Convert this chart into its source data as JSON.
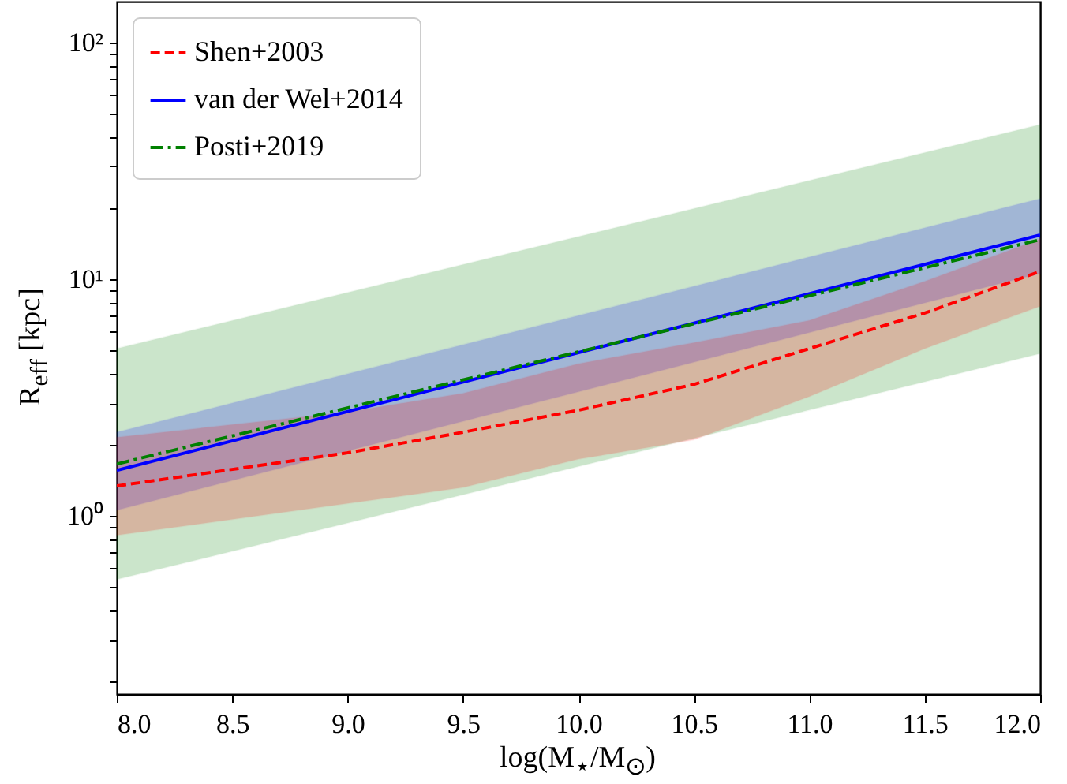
{
  "chart_data": {
    "type": "line",
    "xlabel": "log(M$_{⋆}$/M$_{⊙}$)",
    "ylabel": "R$_{eff}$ [kpc]",
    "xlim": [
      8,
      12
    ],
    "xticks": [
      {
        "value": 8,
        "label": "8.0"
      },
      {
        "value": 8.5,
        "label": "8.5"
      },
      {
        "value": 9,
        "label": "9.0"
      },
      {
        "value": 9.5,
        "label": "9.5"
      },
      {
        "value": 10,
        "label": "10.0"
      },
      {
        "value": 10.5,
        "label": "10.5"
      },
      {
        "value": 11,
        "label": "11.0"
      },
      {
        "value": 11.5,
        "label": "11.5"
      },
      {
        "value": 12,
        "label": "12.0"
      }
    ],
    "ylim": [
      0.177,
      149
    ],
    "log": "y",
    "yticks": [
      {
        "value": 0.2,
        "label": null
      },
      {
        "value": 0.3,
        "label": null
      },
      {
        "value": 0.4,
        "label": null
      },
      {
        "value": 0.5,
        "label": null
      },
      {
        "value": 0.6,
        "label": null
      },
      {
        "value": 0.7,
        "label": null
      },
      {
        "value": 0.8,
        "label": null
      },
      {
        "value": 0.9,
        "label": null
      },
      {
        "value": 1,
        "label": "10⁰"
      },
      {
        "value": 2,
        "label": null
      },
      {
        "value": 3,
        "label": null
      },
      {
        "value": 4,
        "label": null
      },
      {
        "value": 5,
        "label": null
      },
      {
        "value": 6,
        "label": null
      },
      {
        "value": 7,
        "label": null
      },
      {
        "value": 8,
        "label": null
      },
      {
        "value": 9,
        "label": null
      },
      {
        "value": 10,
        "label": "10¹"
      },
      {
        "value": 20,
        "label": null
      },
      {
        "value": 30,
        "label": null
      },
      {
        "value": 40,
        "label": null
      },
      {
        "value": 50,
        "label": null
      },
      {
        "value": 60,
        "label": null
      },
      {
        "value": 70,
        "label": null
      },
      {
        "value": 80,
        "label": null
      },
      {
        "value": 90,
        "label": null
      },
      {
        "value": 100,
        "label": "10²"
      }
    ],
    "grid": false,
    "legend": "top left",
    "series": [
      {
        "name": "Shen+2003",
        "color": "#ff0000",
        "line_style": "dashed",
        "x": [
          8,
          9,
          9.5,
          10,
          10.5,
          11,
          11.5,
          12
        ],
        "values": [
          1.34,
          1.85,
          2.26,
          2.8,
          3.6,
          5.1,
          7.2,
          10.8
        ],
        "lower": [
          0.83,
          1.13,
          1.32,
          1.74,
          2.1,
          3.2,
          5.1,
          7.7
        ],
        "upper": [
          2.15,
          2.75,
          3.3,
          4.4,
          5.4,
          6.7,
          9.8,
          14.8
        ]
      },
      {
        "name": "van der Wel+2014",
        "color": "#0000ff",
        "line_style": "solid",
        "x": [
          8,
          12
        ],
        "values": [
          1.56,
          15.4
        ],
        "lower": [
          1.06,
          10.6
        ],
        "upper": [
          2.26,
          21.9
        ]
      },
      {
        "name": "Posti+2019",
        "color": "#008000",
        "line_style": "dashdot",
        "x": [
          8,
          12
        ],
        "values": [
          1.66,
          14.7
        ],
        "lower": [
          0.54,
          4.86
        ],
        "upper": [
          5.1,
          45
        ]
      }
    ]
  }
}
